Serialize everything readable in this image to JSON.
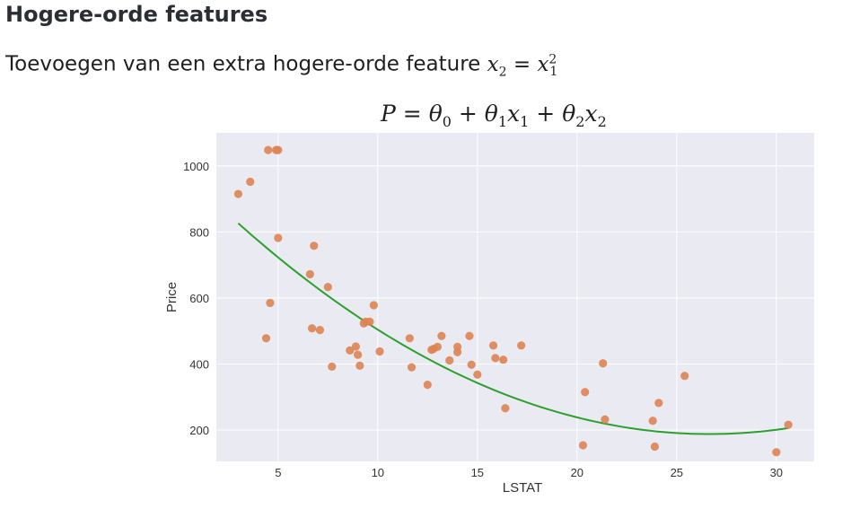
{
  "section_title": "Hogere-orde features",
  "intro": {
    "text": "Toevoegen van een extra hogere-orde feature",
    "formula_lhs_var": "x",
    "formula_lhs_sub": "2",
    "formula_eq": "=",
    "formula_rhs_var": "x",
    "formula_rhs_sub": "1",
    "formula_rhs_sup": "2"
  },
  "equation": {
    "P": "P",
    "eq": "=",
    "theta": "θ",
    "x": "x",
    "plus": "+",
    "sub0": "0",
    "sub1": "1",
    "sub2": "2"
  },
  "chart_data": {
    "type": "scatter",
    "xlabel": "LSTAT",
    "ylabel": "Price",
    "xlim": [
      1.9,
      31.9
    ],
    "ylim": [
      105,
      1100
    ],
    "xticks": [
      5,
      10,
      15,
      20,
      25,
      30
    ],
    "yticks": [
      200,
      400,
      600,
      800,
      1000
    ],
    "grid": true,
    "colors": {
      "background": "#eaeaf2",
      "grid": "#ffffff",
      "points": "#dd8452",
      "curve": "#2ca02c"
    },
    "points": {
      "x": [
        3.0,
        3.6,
        4.5,
        4.6,
        4.9,
        4.4,
        5.0,
        5.0,
        6.6,
        6.8,
        6.7,
        7.1,
        7.5,
        7.7,
        8.6,
        8.9,
        9.0,
        9.1,
        9.3,
        9.4,
        9.6,
        9.8,
        10.1,
        11.6,
        11.7,
        12.5,
        12.7,
        12.8,
        13.0,
        13.2,
        13.6,
        14.0,
        14.0,
        14.6,
        14.7,
        15.0,
        15.8,
        15.9,
        16.3,
        16.4,
        17.2,
        20.3,
        20.4,
        21.3,
        21.4,
        23.8,
        23.9,
        24.1,
        25.4,
        30.0,
        30.6
      ],
      "y": [
        915,
        952,
        1048,
        585,
        1048,
        478,
        782,
        1048,
        672,
        758,
        508,
        503,
        633,
        392,
        441,
        453,
        428,
        395,
        523,
        528,
        528,
        578,
        438,
        478,
        390,
        337,
        443,
        446,
        452,
        485,
        411,
        452,
        436,
        485,
        398,
        368,
        456,
        418,
        413,
        266,
        456,
        154,
        315,
        402,
        232,
        228,
        150,
        282,
        364,
        133,
        216
      ]
    },
    "fit": {
      "theta0": 998.5,
      "theta1": -60.85,
      "theta2": 1.142,
      "x_range": [
        3.0,
        30.6
      ]
    }
  }
}
